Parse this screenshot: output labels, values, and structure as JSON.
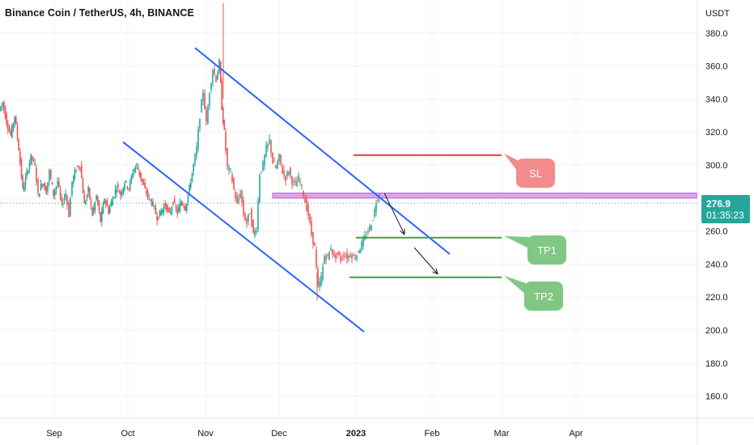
{
  "header": {
    "title": "Binance Coin / TetherUS, 4h, BINANCE"
  },
  "price_axis": {
    "unit_label": "USDT"
  },
  "last_price": {
    "value": "276.9",
    "countdown": "01:35:23",
    "color": "#26a69a"
  },
  "callouts": {
    "sl": {
      "label": "SL",
      "color": "#f28b8b"
    },
    "tp1": {
      "label": "TP1",
      "color": "#80c784"
    },
    "tp2": {
      "label": "TP2",
      "color": "#80c784"
    }
  },
  "chart_data": {
    "type": "candlestick",
    "title": "Binance Coin / TetherUS, 4h, BINANCE",
    "ylabel": "USDT",
    "ylim": [
      150,
      395
    ],
    "y_ticks": [
      160,
      180,
      200,
      220,
      240,
      260,
      280,
      300,
      320,
      340,
      360,
      380
    ],
    "x_tick_labels": [
      "Sep",
      "Oct",
      "Nov",
      "Dec",
      "2023",
      "Feb",
      "Mar",
      "Apr"
    ],
    "grid": true,
    "colors": {
      "up": "#26a69a",
      "down": "#ef5350",
      "channel": "#2962ff",
      "zone": "#b75bd6"
    },
    "price_path": [
      [
        0,
        333
      ],
      [
        4,
        338
      ],
      [
        9,
        326
      ],
      [
        14,
        318
      ],
      [
        19,
        330
      ],
      [
        24,
        310
      ],
      [
        29,
        285
      ],
      [
        34,
        295
      ],
      [
        39,
        305
      ],
      [
        44,
        300
      ],
      [
        48,
        282
      ],
      [
        53,
        290
      ],
      [
        58,
        284
      ],
      [
        62,
        296
      ],
      [
        67,
        282
      ],
      [
        72,
        290
      ],
      [
        77,
        276
      ],
      [
        82,
        283
      ],
      [
        86,
        270
      ],
      [
        90,
        290
      ],
      [
        95,
        298
      ],
      [
        100,
        300
      ],
      [
        105,
        276
      ],
      [
        110,
        285
      ],
      [
        115,
        270
      ],
      [
        120,
        281
      ],
      [
        125,
        266
      ],
      [
        130,
        280
      ],
      [
        135,
        272
      ],
      [
        140,
        280
      ],
      [
        145,
        287
      ],
      [
        150,
        282
      ],
      [
        155,
        290
      ],
      [
        160,
        286
      ],
      [
        165,
        296
      ],
      [
        170,
        300
      ],
      [
        175,
        292
      ],
      [
        180,
        285
      ],
      [
        185,
        280
      ],
      [
        190,
        276
      ],
      [
        195,
        268
      ],
      [
        200,
        272
      ],
      [
        205,
        276
      ],
      [
        210,
        270
      ],
      [
        215,
        278
      ],
      [
        220,
        271
      ],
      [
        225,
        278
      ],
      [
        230,
        274
      ],
      [
        235,
        286
      ],
      [
        240,
        300
      ],
      [
        244,
        310
      ],
      [
        248,
        330
      ],
      [
        252,
        345
      ],
      [
        256,
        325
      ],
      [
        260,
        345
      ],
      [
        264,
        358
      ],
      [
        268,
        352
      ],
      [
        272,
        362
      ],
      [
        275,
        335
      ],
      [
        278,
        320
      ],
      [
        282,
        298
      ],
      [
        286,
        296
      ],
      [
        290,
        285
      ],
      [
        294,
        276
      ],
      [
        298,
        284
      ],
      [
        302,
        270
      ],
      [
        306,
        265
      ],
      [
        310,
        272
      ],
      [
        314,
        258
      ],
      [
        318,
        262
      ],
      [
        322,
        295
      ],
      [
        326,
        300
      ],
      [
        330,
        310
      ],
      [
        334,
        315
      ],
      [
        338,
        302
      ],
      [
        342,
        298
      ],
      [
        346,
        305
      ],
      [
        350,
        296
      ],
      [
        354,
        292
      ],
      [
        358,
        297
      ],
      [
        362,
        290
      ],
      [
        366,
        288
      ],
      [
        370,
        292
      ],
      [
        374,
        286
      ],
      [
        378,
        278
      ],
      [
        382,
        270
      ],
      [
        386,
        258
      ],
      [
        390,
        250
      ],
      [
        394,
        225
      ],
      [
        398,
        232
      ],
      [
        402,
        245
      ],
      [
        406,
        244
      ],
      [
        410,
        250
      ],
      [
        414,
        244
      ],
      [
        418,
        246
      ],
      [
        422,
        243
      ],
      [
        426,
        246
      ],
      [
        430,
        244
      ],
      [
        434,
        246
      ],
      [
        438,
        244
      ],
      [
        442,
        246
      ],
      [
        446,
        250
      ],
      [
        450,
        254
      ],
      [
        454,
        258
      ],
      [
        458,
        262
      ],
      [
        462,
        268
      ],
      [
        466,
        278
      ],
      [
        470,
        282
      ]
    ],
    "channel_upper": [
      [
        241,
        371
      ],
      [
        556,
        246
      ]
    ],
    "channel_lower": [
      [
        152,
        314
      ],
      [
        450,
        199
      ]
    ],
    "resistance_zone": {
      "from_x": 337,
      "to_x": 861,
      "y_top": 283,
      "y_bottom": 280
    },
    "levels": {
      "SL": {
        "y": 306,
        "x_from": 437,
        "x_to": 620,
        "color": "#e53935"
      },
      "TP1": {
        "y": 256,
        "x_from": 440,
        "x_to": 620,
        "color": "#43a047"
      },
      "TP2": {
        "y": 232,
        "x_from": 432,
        "x_to": 620,
        "color": "#43a047"
      }
    },
    "arrows": [
      [
        [
          475,
          253
        ],
        [
          500,
          296
        ]
      ],
      [
        [
          512,
          305
        ],
        [
          541,
          342
        ]
      ]
    ]
  }
}
